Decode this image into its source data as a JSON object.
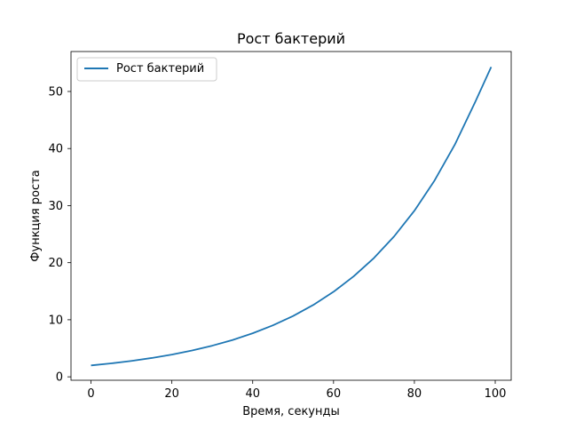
{
  "chart_data": {
    "type": "line",
    "title": "Рост бактерий",
    "xlabel": "Время, секунды",
    "ylabel": "Функция роста",
    "xlim": [
      -4.95,
      103.95
    ],
    "ylim": [
      -0.6,
      57.0
    ],
    "xticks": [
      0,
      20,
      40,
      60,
      80,
      100
    ],
    "yticks": [
      0,
      10,
      20,
      30,
      40,
      50
    ],
    "grid": false,
    "legend_position": "top-left",
    "series": [
      {
        "name": "Рост бактерий",
        "color": "#1f77b4",
        "x": [
          0,
          5,
          10,
          15,
          20,
          25,
          30,
          35,
          40,
          45,
          50,
          55,
          60,
          65,
          70,
          75,
          80,
          85,
          90,
          95,
          99
        ],
        "y": [
          2.0,
          2.36,
          2.79,
          3.3,
          3.9,
          4.62,
          5.46,
          6.45,
          7.63,
          9.02,
          10.66,
          12.6,
          14.9,
          17.62,
          20.82,
          24.62,
          29.1,
          34.41,
          40.68,
          48.09,
          54.3
        ]
      }
    ]
  }
}
